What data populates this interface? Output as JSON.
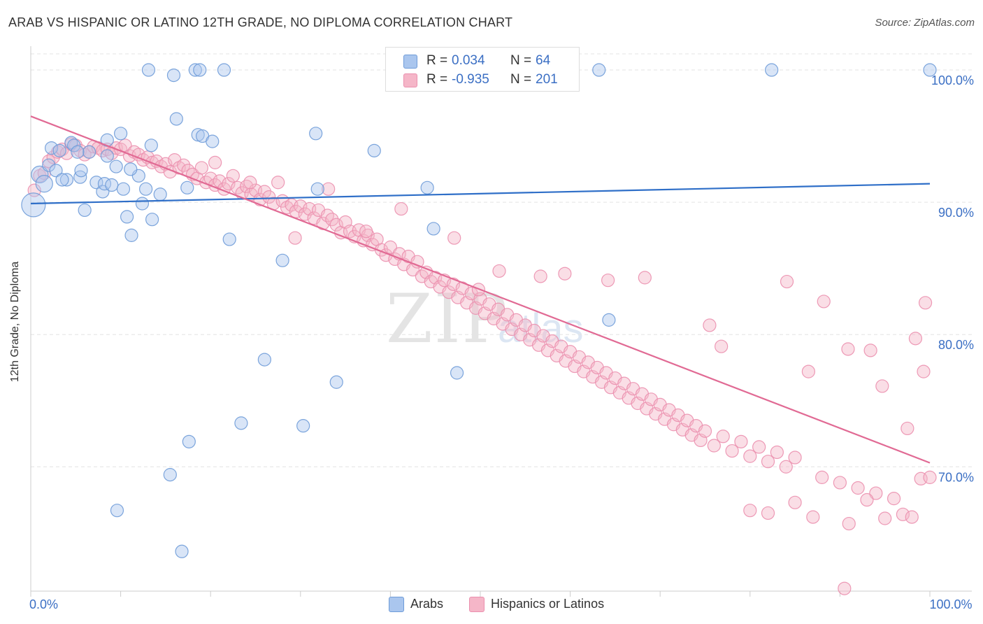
{
  "title": "ARAB VS HISPANIC OR LATINO 12TH GRADE, NO DIPLOMA CORRELATION CHART",
  "source": "Source: ZipAtlas.com",
  "watermark": {
    "main": "ZIP",
    "sub": "atlas"
  },
  "legend": {
    "rows": [
      {
        "r_label": "R =",
        "r_value": "0.034",
        "n_label": "N =",
        "n_value": "64",
        "color": "#aac6ee"
      },
      {
        "r_label": "R =",
        "r_value": "-0.935",
        "n_label": "N =",
        "n_value": "201",
        "color": "#f5b6c8"
      }
    ]
  },
  "bottom_legend": [
    {
      "label": "Arabs",
      "color": "#aac6ee"
    },
    {
      "label": "Hispanics or Latinos",
      "color": "#f5b6c8"
    }
  ],
  "colors": {
    "arab_fill": "#aac6ee",
    "arab_stroke": "#6e9bd8",
    "arab_line": "#2f6fc8",
    "hisp_fill": "#f5b6c8",
    "hisp_stroke": "#eb8fae",
    "hisp_line": "#e16a94",
    "tick_label": "#3b6fc4"
  },
  "chart_data": {
    "type": "scatter",
    "xlabel": "",
    "ylabel": "12th Grade, No Diploma",
    "xlim": [
      0,
      100
    ],
    "ylim": [
      60.6,
      101.8
    ],
    "x_tick_labels": [
      {
        "x": 0,
        "label": "0.0%"
      },
      {
        "x": 100,
        "label": "100.0%"
      }
    ],
    "y_tick_labels": [
      {
        "y": 100,
        "label": "100.0%"
      },
      {
        "y": 90,
        "label": "90.0%"
      },
      {
        "y": 80,
        "label": "80.0%"
      },
      {
        "y": 70,
        "label": "70.0%"
      }
    ],
    "grid": true,
    "series": [
      {
        "name": "Arabs",
        "trend": {
          "x": [
            0,
            100
          ],
          "y": [
            89.9,
            91.4
          ]
        },
        "points": [
          [
            0.3,
            89.8
          ],
          [
            1,
            92.1
          ],
          [
            1.5,
            91.4
          ],
          [
            2,
            92.8
          ],
          [
            2.3,
            94.1
          ],
          [
            2.8,
            92.4
          ],
          [
            3.2,
            93.9
          ],
          [
            4,
            91.7
          ],
          [
            4.5,
            94.5
          ],
          [
            4.8,
            94.3
          ],
          [
            5.5,
            91.9
          ],
          [
            5.6,
            92.4
          ],
          [
            6,
            89.4
          ],
          [
            6.5,
            93.8
          ],
          [
            7.3,
            91.5
          ],
          [
            8,
            90.8
          ],
          [
            8.2,
            91.4
          ],
          [
            8.5,
            94.7
          ],
          [
            9,
            91.3
          ],
          [
            9.5,
            92.7
          ],
          [
            10,
            95.2
          ],
          [
            10.3,
            91
          ],
          [
            10.7,
            88.9
          ],
          [
            11.2,
            87.5
          ],
          [
            12,
            92
          ],
          [
            12.4,
            89.9
          ],
          [
            12.8,
            91
          ],
          [
            13.4,
            94.3
          ],
          [
            13.5,
            88.7
          ],
          [
            14.4,
            90.6
          ],
          [
            13.1,
            100
          ],
          [
            15.9,
            99.6
          ],
          [
            18.3,
            100
          ],
          [
            18.8,
            100
          ],
          [
            21.5,
            100
          ],
          [
            16.2,
            96.3
          ],
          [
            18.6,
            95.1
          ],
          [
            19.1,
            95
          ],
          [
            20.2,
            94.6
          ],
          [
            17.4,
            91.1
          ],
          [
            22.1,
            87.2
          ],
          [
            28,
            85.6
          ],
          [
            31.7,
            95.2
          ],
          [
            31.9,
            91
          ],
          [
            38.2,
            93.9
          ],
          [
            44.1,
            91.1
          ],
          [
            44.8,
            88
          ],
          [
            63.2,
            100
          ],
          [
            82.4,
            100
          ],
          [
            100,
            100
          ],
          [
            64.3,
            81.1
          ],
          [
            26,
            78.1
          ],
          [
            34,
            76.4
          ],
          [
            47.4,
            77.1
          ],
          [
            23.4,
            73.3
          ],
          [
            30.3,
            73.1
          ],
          [
            17.6,
            71.9
          ],
          [
            15.5,
            69.4
          ],
          [
            9.6,
            66.7
          ],
          [
            16.8,
            63.6
          ],
          [
            8.5,
            93.5
          ],
          [
            5.2,
            93.8
          ],
          [
            3.5,
            91.7
          ],
          [
            11.1,
            92.5
          ]
        ]
      },
      {
        "name": "Hispanics or Latinos",
        "trend": {
          "x": [
            0,
            100
          ],
          "y": [
            96.5,
            70.3
          ]
        },
        "points": [
          [
            0.4,
            90.9
          ],
          [
            1,
            92
          ],
          [
            1.5,
            92.2
          ],
          [
            2,
            93.1
          ],
          [
            2.5,
            93.4
          ],
          [
            3,
            93.8
          ],
          [
            3.5,
            94
          ],
          [
            4,
            93.7
          ],
          [
            4.5,
            94.4
          ],
          [
            5,
            94.3
          ],
          [
            5.5,
            93.9
          ],
          [
            6,
            93.6
          ],
          [
            6.5,
            93.8
          ],
          [
            7,
            94.2
          ],
          [
            7.5,
            94.1
          ],
          [
            8,
            93.9
          ],
          [
            8.5,
            94
          ],
          [
            9,
            93.7
          ],
          [
            9.5,
            94.1
          ],
          [
            10,
            94
          ],
          [
            10.5,
            94.3
          ],
          [
            11,
            93.5
          ],
          [
            11.5,
            93.8
          ],
          [
            12,
            93.6
          ],
          [
            12.5,
            93.2
          ],
          [
            13,
            93.4
          ],
          [
            13.5,
            93
          ],
          [
            14,
            93.1
          ],
          [
            14.5,
            92.7
          ],
          [
            15,
            92.9
          ],
          [
            15.5,
            92.3
          ],
          [
            16,
            93.2
          ],
          [
            16.5,
            92.6
          ],
          [
            17,
            92.8
          ],
          [
            17.5,
            92.4
          ],
          [
            18,
            92.1
          ],
          [
            18.5,
            91.8
          ],
          [
            19,
            92.6
          ],
          [
            19.5,
            91.5
          ],
          [
            20,
            91.8
          ],
          [
            20.5,
            91.3
          ],
          [
            21,
            91.6
          ],
          [
            21.5,
            91
          ],
          [
            22,
            91.4
          ],
          [
            22.5,
            92
          ],
          [
            23,
            91.1
          ],
          [
            23.5,
            90.7
          ],
          [
            24,
            91.2
          ],
          [
            24.5,
            90.6
          ],
          [
            25,
            90.9
          ],
          [
            25.5,
            90.2
          ],
          [
            26,
            90.8
          ],
          [
            26.5,
            90.4
          ],
          [
            27,
            89.9
          ],
          [
            27.5,
            91.5
          ],
          [
            28,
            90.1
          ],
          [
            28.5,
            89.6
          ],
          [
            29,
            89.8
          ],
          [
            29.5,
            89.3
          ],
          [
            30,
            89.7
          ],
          [
            30.5,
            89.1
          ],
          [
            31,
            89.5
          ],
          [
            31.5,
            88.8
          ],
          [
            32,
            89.4
          ],
          [
            32.5,
            88.4
          ],
          [
            33,
            89
          ],
          [
            33.5,
            88.7
          ],
          [
            34,
            88.3
          ],
          [
            34.5,
            87.7
          ],
          [
            35,
            88.5
          ],
          [
            35.5,
            87.8
          ],
          [
            36,
            87.4
          ],
          [
            36.5,
            87.9
          ],
          [
            37,
            87.1
          ],
          [
            37.5,
            87.5
          ],
          [
            38,
            86.8
          ],
          [
            38.5,
            87.2
          ],
          [
            39,
            86.4
          ],
          [
            39.5,
            86
          ],
          [
            40,
            86.6
          ],
          [
            40.5,
            85.7
          ],
          [
            41,
            86.1
          ],
          [
            41.5,
            85.3
          ],
          [
            42,
            85.9
          ],
          [
            42.5,
            84.9
          ],
          [
            43,
            85.5
          ],
          [
            43.5,
            84.4
          ],
          [
            44,
            84.7
          ],
          [
            44.5,
            84
          ],
          [
            45,
            84.3
          ],
          [
            45.5,
            83.6
          ],
          [
            46,
            84.1
          ],
          [
            46.5,
            83.2
          ],
          [
            47,
            83.8
          ],
          [
            47.5,
            82.8
          ],
          [
            48,
            83.5
          ],
          [
            48.5,
            82.4
          ],
          [
            49,
            83.1
          ],
          [
            49.5,
            82
          ],
          [
            50,
            82.7
          ],
          [
            50.5,
            81.6
          ],
          [
            51,
            82.3
          ],
          [
            51.5,
            81.2
          ],
          [
            52,
            81.9
          ],
          [
            52.5,
            80.8
          ],
          [
            53,
            81.5
          ],
          [
            53.5,
            80.4
          ],
          [
            54,
            81.1
          ],
          [
            54.5,
            80
          ],
          [
            55,
            80.7
          ],
          [
            55.5,
            79.6
          ],
          [
            56,
            80.3
          ],
          [
            56.5,
            79.2
          ],
          [
            57,
            79.9
          ],
          [
            57.5,
            78.8
          ],
          [
            58,
            79.5
          ],
          [
            58.5,
            78.4
          ],
          [
            59,
            79.1
          ],
          [
            59.5,
            78
          ],
          [
            60,
            78.7
          ],
          [
            60.5,
            77.6
          ],
          [
            61,
            78.3
          ],
          [
            61.5,
            77.2
          ],
          [
            62,
            77.9
          ],
          [
            62.5,
            76.8
          ],
          [
            63,
            77.5
          ],
          [
            63.5,
            76.4
          ],
          [
            64,
            77.1
          ],
          [
            64.5,
            76
          ],
          [
            65,
            76.7
          ],
          [
            65.5,
            75.6
          ],
          [
            66,
            76.3
          ],
          [
            66.5,
            75.2
          ],
          [
            67,
            75.9
          ],
          [
            67.5,
            74.8
          ],
          [
            68,
            75.5
          ],
          [
            68.5,
            74.4
          ],
          [
            69,
            75.1
          ],
          [
            69.5,
            74
          ],
          [
            70,
            74.7
          ],
          [
            70.5,
            73.6
          ],
          [
            71,
            74.3
          ],
          [
            71.5,
            73.2
          ],
          [
            72,
            73.9
          ],
          [
            72.5,
            72.8
          ],
          [
            73,
            73.5
          ],
          [
            73.5,
            72.4
          ],
          [
            74,
            73.1
          ],
          [
            74.5,
            72
          ],
          [
            75,
            72.7
          ],
          [
            76,
            71.6
          ],
          [
            77,
            72.3
          ],
          [
            78,
            71.2
          ],
          [
            79,
            71.9
          ],
          [
            80,
            70.8
          ],
          [
            81,
            71.5
          ],
          [
            82,
            70.4
          ],
          [
            83,
            71.1
          ],
          [
            84,
            70
          ],
          [
            85,
            70.7
          ],
          [
            88,
            69.2
          ],
          [
            90,
            68.8
          ],
          [
            92,
            68.4
          ],
          [
            94,
            68
          ],
          [
            96,
            67.6
          ],
          [
            97,
            66.4
          ],
          [
            98,
            66.2
          ],
          [
            99,
            69.1
          ],
          [
            100,
            69.2
          ],
          [
            91,
            65.7
          ],
          [
            87,
            66.2
          ],
          [
            85,
            67.3
          ],
          [
            82,
            66.5
          ],
          [
            80,
            66.7
          ],
          [
            93,
            67.5
          ],
          [
            95,
            66.1
          ],
          [
            97.5,
            72.9
          ],
          [
            98.4,
            79.7
          ],
          [
            99.3,
            77.2
          ],
          [
            99.5,
            82.4
          ],
          [
            88.2,
            82.5
          ],
          [
            84.1,
            84
          ],
          [
            94.7,
            76.1
          ],
          [
            93.4,
            78.8
          ],
          [
            90.9,
            78.9
          ],
          [
            86.5,
            77.2
          ],
          [
            76.8,
            79.1
          ],
          [
            75.5,
            80.7
          ],
          [
            68.3,
            84.3
          ],
          [
            64.2,
            84.1
          ],
          [
            59.4,
            84.6
          ],
          [
            56.7,
            84.4
          ],
          [
            52.1,
            84.8
          ],
          [
            49.8,
            83.4
          ],
          [
            47.1,
            87.3
          ],
          [
            41.2,
            89.5
          ],
          [
            37.3,
            87.8
          ],
          [
            33.1,
            91
          ],
          [
            29.4,
            87.3
          ],
          [
            24.4,
            91.5
          ],
          [
            20.5,
            93
          ],
          [
            90.5,
            60.8
          ]
        ]
      }
    ]
  }
}
